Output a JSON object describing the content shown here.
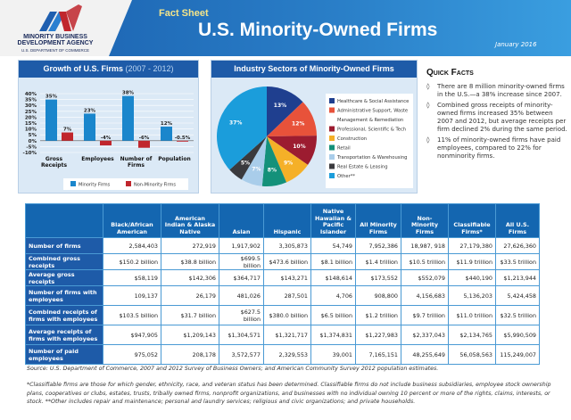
{
  "header": {
    "org_line1": "MINORITY BUSINESS",
    "org_line2": "DEVELOPMENT AGENCY",
    "org_line3": "U.S. DEPARTMENT OF COMMERCE",
    "kicker": "Fact Sheet",
    "title": "U.S. Minority-Owned Firms",
    "date": "January 2016"
  },
  "colors": {
    "brand_blue": "#1e5ba8",
    "minority": "#1a86cc",
    "non_minority": "#c0262d"
  },
  "growth_chart": {
    "title": "Growth of U.S. Firms",
    "title_range": "(2007 - 2012)"
  },
  "pie_chart": {
    "title": "Industry Sectors of Minority-Owned Firms"
  },
  "chart_data": [
    {
      "type": "bar",
      "title": "Growth of U.S. Firms (2007 - 2012)",
      "categories": [
        "Gross Receipts",
        "Employees",
        "Number of Firms",
        "Population"
      ],
      "series": [
        {
          "name": "Minority Firms",
          "values": [
            35,
            23,
            38,
            12
          ],
          "labels": [
            "35%",
            "23%",
            "38%",
            "12%"
          ],
          "color": "#1a86cc"
        },
        {
          "name": "Non-Minority Firms",
          "values": [
            7,
            -4,
            -6,
            -0.5
          ],
          "labels": [
            "7%",
            "-4%",
            "-6%",
            "-0.5%"
          ],
          "color": "#c0262d"
        }
      ],
      "ylim": [
        -10,
        40
      ],
      "yticks": [
        "40%",
        "35%",
        "30%",
        "25%",
        "20%",
        "15%",
        "10%",
        "5%",
        "0%",
        "-5%",
        "-10%"
      ],
      "grid": true,
      "legend": "bottom"
    },
    {
      "type": "pie",
      "title": "Industry Sectors of Minority-Owned Firms",
      "legend": "right",
      "slices": [
        {
          "name": "Healthcare & Social Assistance",
          "value": 13,
          "label": "13%",
          "color": "#1f3f8f"
        },
        {
          "name": "Administrative Support, Waste Management & Remediation",
          "value": 12,
          "label": "12%",
          "color": "#e8523a"
        },
        {
          "name": "Professional, Scientific & Tech",
          "value": 10,
          "label": "10%",
          "color": "#9c1c30"
        },
        {
          "name": "Construction",
          "value": 9,
          "label": "9%",
          "color": "#f5b028"
        },
        {
          "name": "Retail",
          "value": 8,
          "label": "8%",
          "color": "#14917a"
        },
        {
          "name": "Transportation & Warehousing",
          "value": 7,
          "label": "7%",
          "color": "#a9cdea"
        },
        {
          "name": "Real Estate & Leasing",
          "value": 5,
          "label": "5%",
          "color": "#3a3a3e"
        },
        {
          "name": "Other**",
          "value": 37,
          "label": "37%",
          "color": "#1b9ddb"
        }
      ]
    }
  ],
  "quick_facts": {
    "title": "Quick Facts",
    "items": [
      "There are 8 million minority-owned firms in the U.S.—a 38% increase since 2007.",
      "Combined gross receipts of minority-owned firms increased 35% between 2007 and 2012, but average receipts per firm declined 2% during the same period.",
      "11% of minority-owned firms have paid employees, compared to 22% for nonminority firms."
    ]
  },
  "table": {
    "columns": [
      "Black/African American",
      "American Indian & Alaska Native",
      "Asian",
      "Hispanic",
      "Native Hawaiian & Pacific Islander",
      "All Minority Firms",
      "Non-Minority Firms",
      "Classifiable Firms*",
      "All U.S. Firms"
    ],
    "rows": [
      {
        "label": "Number of firms",
        "values": [
          "2,584,403",
          "272,919",
          "1,917,902",
          "3,305,873",
          "54,749",
          "7,952,386",
          "18,987, 918",
          "27,179,380",
          "27,626,360"
        ]
      },
      {
        "label": "Combined gross receipts",
        "values": [
          "$150.2 billion",
          "$38.8 billion",
          "$699.5 billion",
          "$473.6 billion",
          "$8.1 billion",
          "$1.4 trillion",
          "$10.5 trillion",
          "$11.9 trillion",
          "$33.5 trillion"
        ]
      },
      {
        "label": "Average gross receipts",
        "values": [
          "$58,119",
          "$142,306",
          "$364,717",
          "$143,271",
          "$148,614",
          "$173,552",
          "$552,079",
          "$440,190",
          "$1,213,944"
        ]
      },
      {
        "label": "Number of firms with employees",
        "values": [
          "109,137",
          "26,179",
          "481,026",
          "287,501",
          "4,706",
          "908,800",
          "4,156,683",
          "5,136,203",
          "5,424,458"
        ]
      },
      {
        "label": "Combined receipts of firms with employees",
        "values": [
          "$103.5 billion",
          "$31.7 billion",
          "$627.5 billion",
          "$380.0 billion",
          "$6.5 billion",
          "$1.2 trillion",
          "$9.7 trillion",
          "$11.0 trillion",
          "$32.5 trillion"
        ]
      },
      {
        "label": "Average receipts of firms with employees",
        "values": [
          "$947,905",
          "$1,209,143",
          "$1,304,571",
          "$1,321,717",
          "$1,374,831",
          "$1,227,983",
          "$2,337,043",
          "$2,134,765",
          "$5,990,509"
        ]
      },
      {
        "label": "Number of paid employees",
        "values": [
          "975,052",
          "208,178",
          "3,572,577",
          "2,329,553",
          "39,001",
          "7,165,151",
          "48,255,649",
          "56,058,563",
          "115,249,007"
        ]
      }
    ]
  },
  "source": "Source: U.S. Department of Commerce, 2007 and 2012 Survey of Business Owners; and American Community Survey 2012 population estimates.",
  "footnote": "*Classifiable firms are those for which gender, ethnicity, race, and veteran status has been determined. Classifiable firms do not include business subsidiaries, employee stock ownership plans, cooperatives or clubs, estates, trusts, tribally owned firms, nonprofit organizations, and businesses with no individual owning 10 percent or more of the rights, claims, interests, or stock.  **Other includes repair and maintenance; personal and laundry services; religious and civic organizations; and private households."
}
